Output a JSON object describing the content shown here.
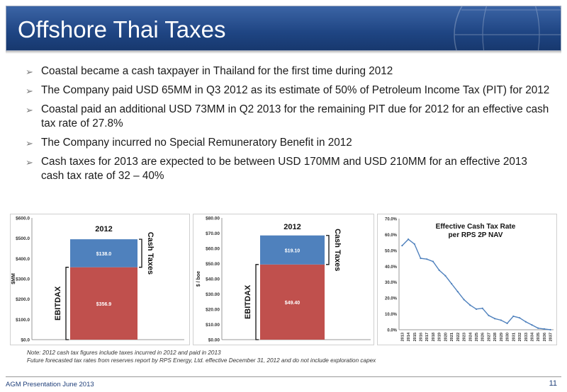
{
  "slide": {
    "title": "Offshore Thai Taxes",
    "bullets": [
      "Coastal became a cash taxpayer in Thailand for the first time during 2012",
      "The Company paid USD 65MM in Q3 2012 as its estimate of 50% of Petroleum Income Tax (PIT) for 2012",
      "Coastal paid an additional USD 73MM in Q2 2013 for the remaining PIT due for 2012 for an effective cash tax rate of 27.8%",
      "The Company incurred no Special Remuneratory Benefit in 2012",
      "Cash taxes for 2013 are expected to be between USD 170MM and USD 210MM for an effective 2013 cash tax rate of 32 – 40%"
    ],
    "note_lines": [
      "Note: 2012 cash tax figures include taxes incurred in 2012 and paid in 2013",
      "Future forecasted tax rates from reserves report by RPS Energy, Ltd. effective December 31, 2012 and do not include exploration capex"
    ],
    "footer_left": "AGM Presentation June 2013",
    "page_number": "11"
  },
  "colors": {
    "header": "#1f4583",
    "ebitdax": "#c0504d",
    "cash_taxes": "#4f81bd",
    "line": "#4f81bd"
  },
  "chart_data": [
    {
      "type": "bar",
      "title": "2012",
      "ylabel": "$MM",
      "ylim": [
        0,
        600
      ],
      "yticks": [
        "$0.0",
        "$100.0",
        "$200.0",
        "$300.0",
        "$400.0",
        "$500.0",
        "$600.0"
      ],
      "categories": [
        "2012"
      ],
      "series": [
        {
          "name": "EBITDAX",
          "values": [
            356.9
          ],
          "label": "$356.9"
        },
        {
          "name": "Cash Taxes",
          "values": [
            138.0
          ],
          "label": "$138.0"
        }
      ]
    },
    {
      "type": "bar",
      "title": "2012",
      "ylabel": "$ / boe",
      "ylim": [
        0,
        80
      ],
      "yticks": [
        "$0.00",
        "$10.00",
        "$20.00",
        "$30.00",
        "$40.00",
        "$50.00",
        "$60.00",
        "$70.00",
        "$80.00"
      ],
      "categories": [
        "2012"
      ],
      "series": [
        {
          "name": "EBITDAX",
          "values": [
            49.4
          ],
          "label": "$49.40"
        },
        {
          "name": "Cash Taxes",
          "values": [
            19.1
          ],
          "label": "$19.10"
        }
      ]
    },
    {
      "type": "line",
      "title": "Effective Cash Tax Rate per RPS 2P NAV",
      "ylim": [
        0,
        70
      ],
      "yticks": [
        "0.0%",
        "10.0%",
        "20.0%",
        "30.0%",
        "40.0%",
        "50.0%",
        "60.0%",
        "70.0%"
      ],
      "x": [
        "2013",
        "2014",
        "2015",
        "2016",
        "2017",
        "2018",
        "2019",
        "2020",
        "2021",
        "2022",
        "2023",
        "2024",
        "2025",
        "2026",
        "2027",
        "2028",
        "2029",
        "2030",
        "2031",
        "2032",
        "2033",
        "2034",
        "2035",
        "2036",
        "2037"
      ],
      "series": [
        {
          "values": [
            53,
            57,
            54,
            45,
            44.5,
            43,
            37.5,
            34,
            29,
            24,
            19,
            15.5,
            13,
            13.5,
            9,
            7,
            6,
            4,
            8.5,
            7.5,
            5,
            3,
            1,
            0.5,
            0
          ]
        }
      ]
    }
  ]
}
